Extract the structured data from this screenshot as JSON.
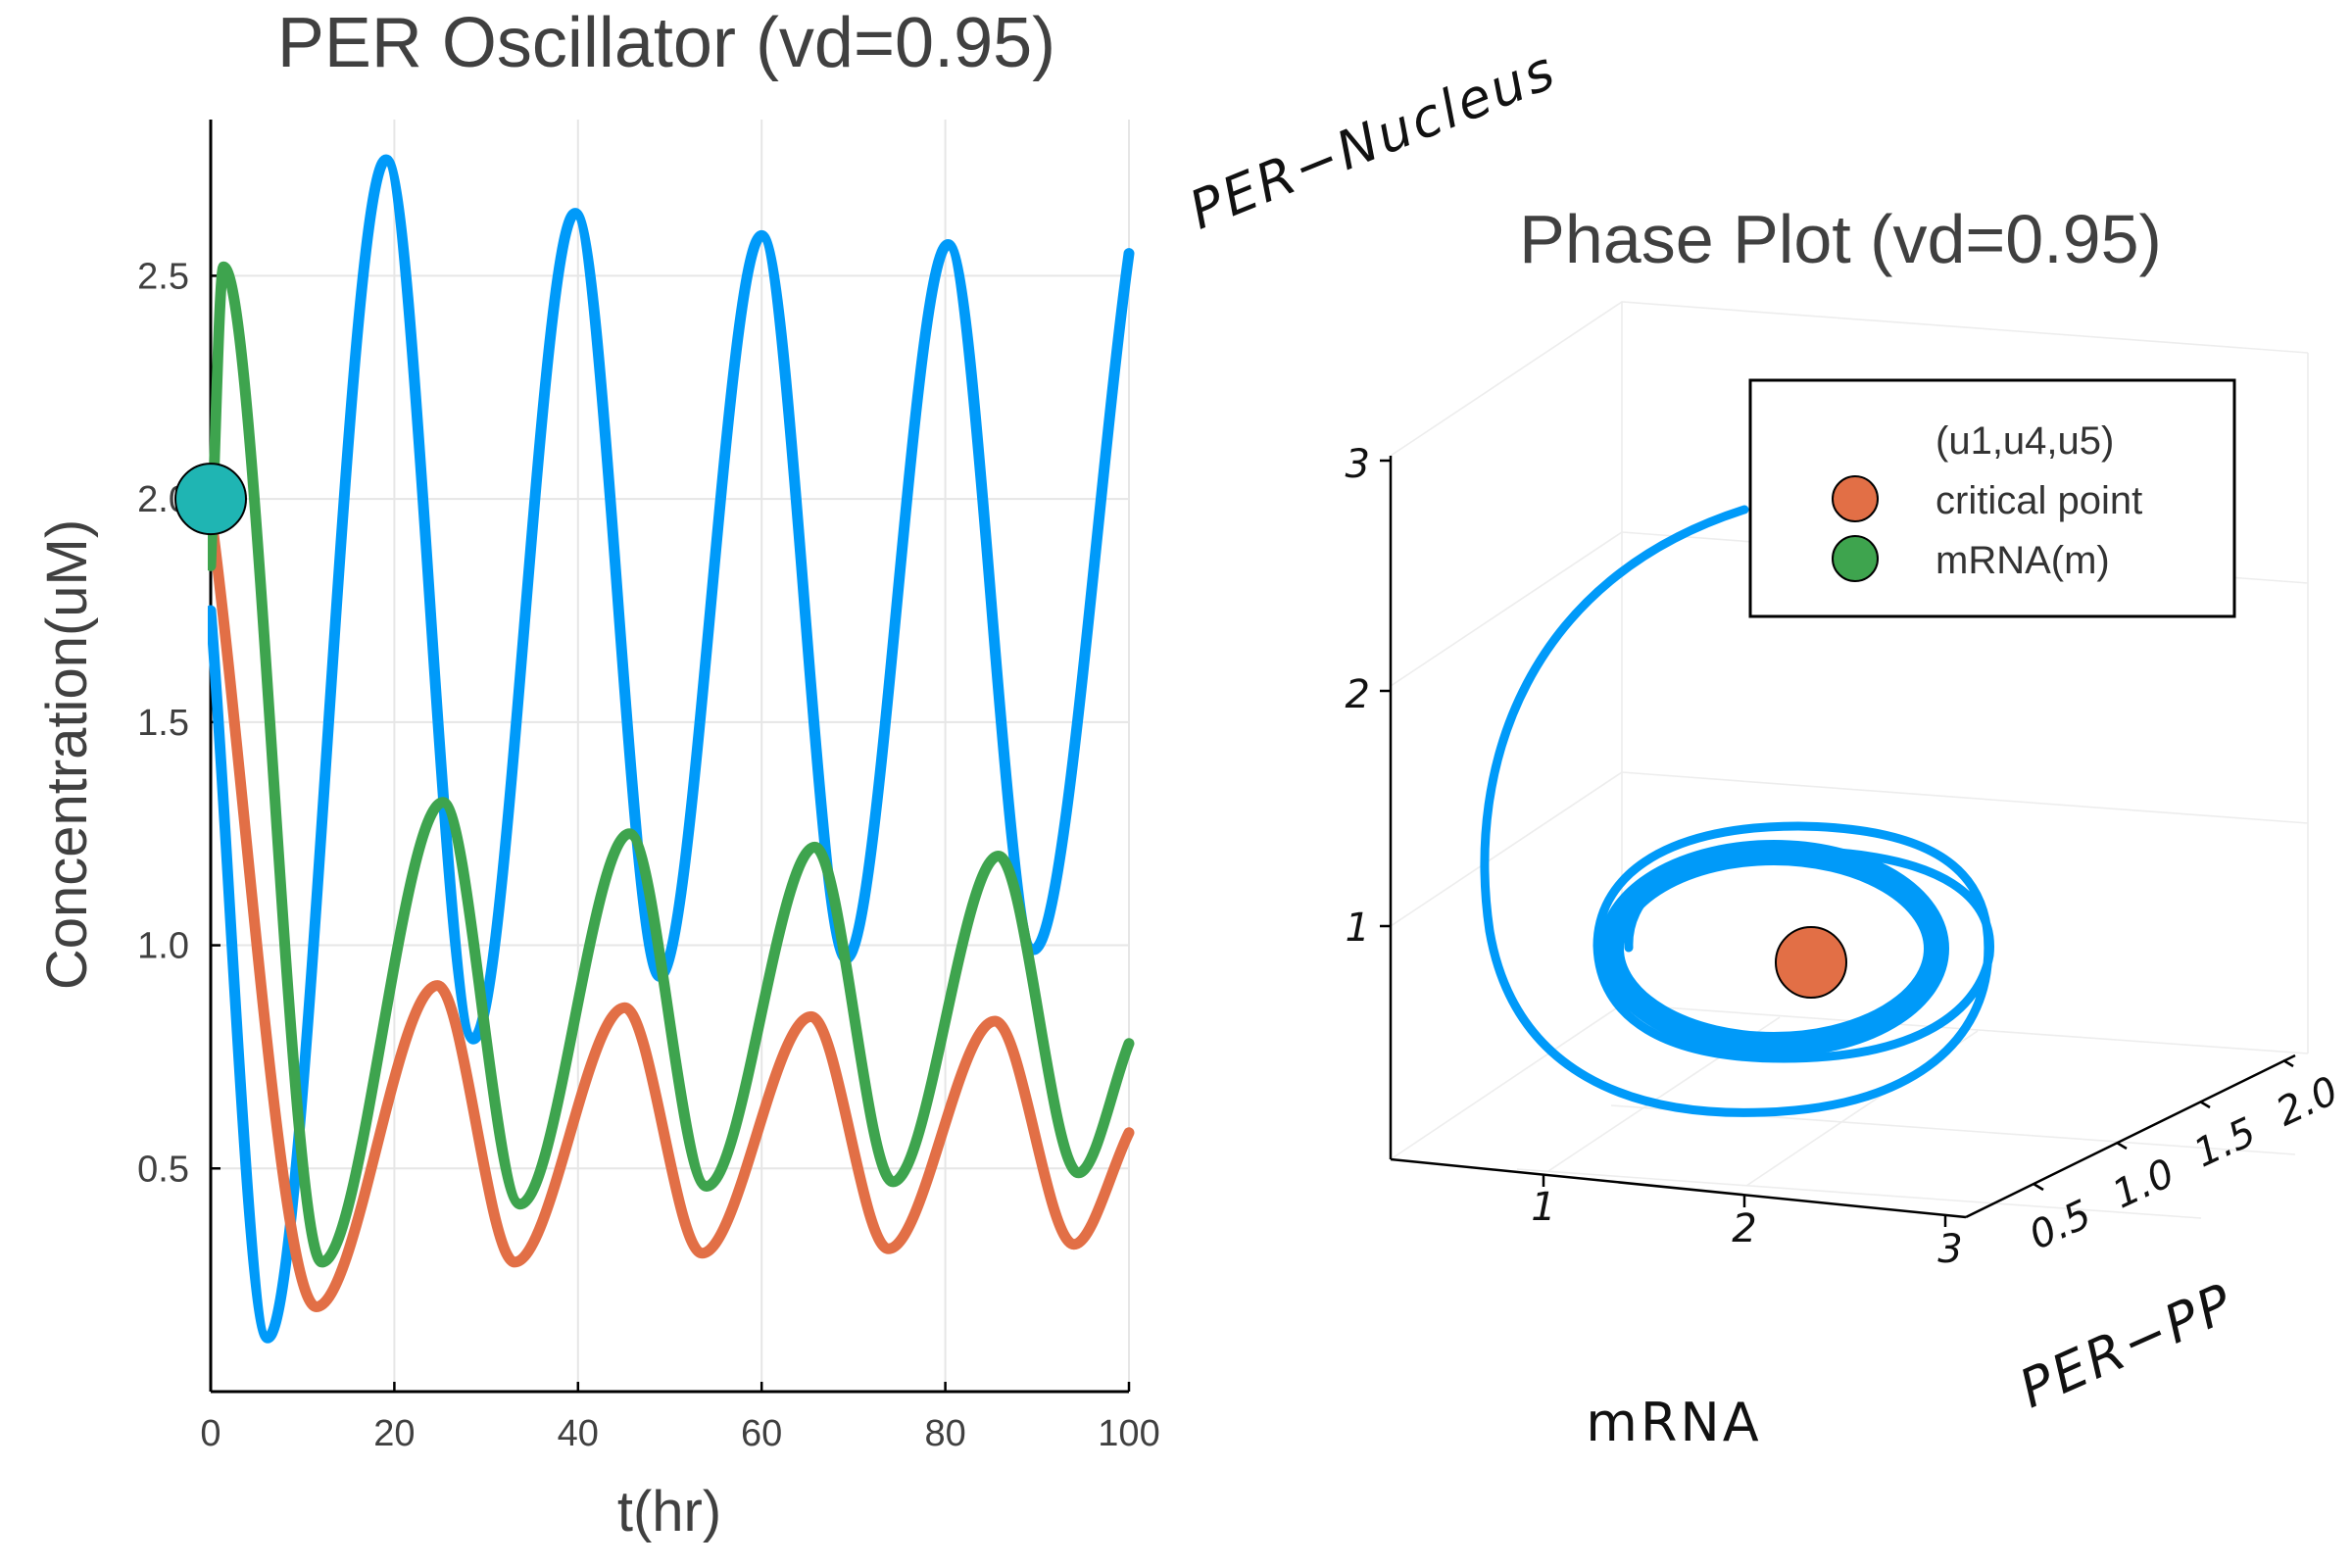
{
  "chart_data": [
    {
      "type": "line",
      "title": "PER Oscillator (vd=0.95)",
      "xlabel": "t(hr)",
      "ylabel": "Concentration(uM)",
      "xlim": [
        0,
        100
      ],
      "ylim": [
        0.0,
        2.85
      ],
      "xticks": [
        "0",
        "20",
        "40",
        "60",
        "80",
        "100"
      ],
      "yticks": [
        "0.5",
        "1.0",
        "1.5",
        "2.0",
        "2.5"
      ],
      "grid": true,
      "colors": [
        "#009af9",
        "#e26f46",
        "#3ea44e",
        "#1fb5b3"
      ],
      "series": [
        {
          "color": "#009af9",
          "x": [
            0,
            6.2,
            19.1,
            28.6,
            39.7,
            48.9,
            60.0,
            69.2,
            80.3,
            89.6,
            100
          ],
          "y": [
            1.75,
            0.12,
            2.76,
            0.79,
            2.64,
            0.93,
            2.59,
            0.97,
            2.57,
            0.99,
            2.55
          ]
        },
        {
          "color": "#e26f46",
          "x": [
            0,
            11.5,
            24.7,
            33.1,
            45.1,
            53.5,
            65.4,
            73.8,
            85.4,
            94.0,
            100
          ],
          "y": [
            1.97,
            0.19,
            0.91,
            0.29,
            0.86,
            0.31,
            0.84,
            0.32,
            0.83,
            0.33,
            0.58
          ]
        },
        {
          "color": "#3ea44e",
          "x": [
            0,
            1.4,
            12.1,
            25.3,
            33.7,
            45.6,
            54.0,
            65.8,
            74.3,
            85.8,
            94.5,
            100
          ],
          "y": [
            1.85,
            2.52,
            0.29,
            1.32,
            0.42,
            1.25,
            0.46,
            1.22,
            0.47,
            1.2,
            0.49,
            0.78
          ]
        }
      ],
      "markers": [
        {
          "color": "#1fb5b3",
          "x": 0,
          "y": 2.0
        }
      ]
    },
    {
      "type": "scatter",
      "title": "Phase Plot (vd=0.95)",
      "xlabel": "mRNA",
      "ylabel": "PER−PP",
      "zlabel": "PER−Nucleus",
      "xticks": [
        "1",
        "2",
        "3"
      ],
      "yticks": [
        "0.5",
        "1.0",
        "1.5",
        "2.0"
      ],
      "zticks": [
        "1",
        "2",
        "3"
      ],
      "grid": true,
      "legend_position": "top-right",
      "legend": [
        "(u1,u4,u5)",
        "critical point",
        "mRNA(m)"
      ],
      "colors": [
        "#009af9",
        "#e26f46",
        "#3ea44e"
      ],
      "series": [
        {
          "name": "(u1,u4,u5)",
          "type": "line",
          "color": "#009af9"
        },
        {
          "name": "critical point",
          "type": "scatter",
          "color": "#e26f46"
        },
        {
          "name": "mRNA(m)",
          "type": "scatter",
          "color": "#3ea44e"
        }
      ]
    }
  ]
}
